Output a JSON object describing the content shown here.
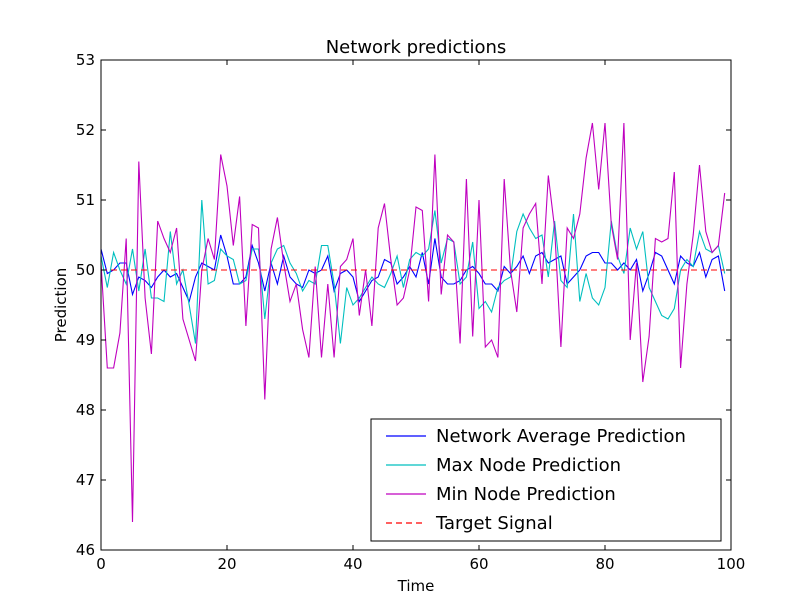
{
  "chart_data": {
    "type": "line",
    "title": "Network predictions",
    "xlabel": "Time",
    "ylabel": "Prediction",
    "xlim": [
      0,
      100
    ],
    "ylim": [
      46,
      53
    ],
    "xticks": [
      "0",
      "20",
      "40",
      "60",
      "80",
      "100"
    ],
    "yticks": [
      "46",
      "47",
      "48",
      "49",
      "50",
      "51",
      "52",
      "53"
    ],
    "grid": false,
    "legend_position": "lower-right",
    "x": [
      0,
      1,
      2,
      3,
      4,
      5,
      6,
      7,
      8,
      9,
      10,
      11,
      12,
      13,
      14,
      15,
      16,
      17,
      18,
      19,
      20,
      21,
      22,
      23,
      24,
      25,
      26,
      27,
      28,
      29,
      30,
      31,
      32,
      33,
      34,
      35,
      36,
      37,
      38,
      39,
      40,
      41,
      42,
      43,
      44,
      45,
      46,
      47,
      48,
      49,
      50,
      51,
      52,
      53,
      54,
      55,
      56,
      57,
      58,
      59,
      60,
      61,
      62,
      63,
      64,
      65,
      66,
      67,
      68,
      69,
      70,
      71,
      72,
      73,
      74,
      75,
      76,
      77,
      78,
      79,
      80,
      81,
      82,
      83,
      84,
      85,
      86,
      87,
      88,
      89,
      90,
      91,
      92,
      93,
      94,
      95,
      96,
      97,
      98,
      99
    ],
    "series": [
      {
        "name": "Network Average Prediction",
        "color": "#0000ff",
        "dash": "solid",
        "values": [
          50.3,
          49.95,
          50.0,
          50.1,
          50.1,
          49.65,
          49.9,
          49.85,
          49.75,
          49.9,
          50.0,
          49.9,
          49.95,
          49.75,
          49.55,
          49.9,
          50.1,
          50.05,
          50.0,
          50.5,
          50.2,
          49.8,
          49.8,
          49.9,
          50.35,
          50.1,
          49.7,
          50.1,
          49.8,
          50.2,
          49.9,
          49.8,
          49.75,
          50.0,
          49.95,
          50.0,
          50.2,
          49.7,
          49.95,
          50.0,
          49.9,
          49.55,
          49.7,
          49.85,
          49.9,
          50.15,
          50.1,
          49.8,
          49.9,
          50.05,
          49.9,
          50.25,
          49.8,
          50.45,
          49.9,
          49.8,
          49.8,
          49.85,
          50.0,
          50.05,
          49.95,
          49.8,
          49.8,
          49.7,
          50.05,
          49.95,
          50.05,
          50.2,
          49.95,
          50.2,
          50.25,
          50.1,
          50.15,
          50.2,
          49.8,
          49.9,
          50.0,
          50.2,
          50.25,
          50.25,
          50.1,
          50.1,
          50.0,
          50.1,
          50.0,
          50.15,
          49.7,
          49.95,
          50.25,
          50.2,
          50.0,
          49.8,
          50.2,
          50.1,
          50.05,
          50.25,
          49.9,
          50.15,
          50.2,
          49.7
        ]
      },
      {
        "name": "Max Node Prediction",
        "color": "#00bfbf",
        "dash": "solid",
        "values": [
          50.2,
          49.75,
          50.25,
          50.0,
          49.8,
          50.3,
          49.7,
          50.3,
          49.6,
          49.6,
          49.55,
          50.55,
          49.8,
          50.0,
          49.5,
          48.95,
          51.0,
          49.8,
          49.85,
          50.3,
          50.2,
          50.15,
          49.8,
          49.85,
          50.3,
          50.3,
          49.3,
          50.1,
          50.3,
          50.35,
          50.1,
          49.95,
          49.7,
          49.85,
          49.8,
          50.35,
          50.35,
          49.8,
          48.95,
          49.75,
          49.5,
          49.6,
          49.75,
          49.9,
          49.8,
          49.75,
          49.95,
          50.2,
          49.75,
          50.15,
          50.25,
          50.2,
          50.3,
          50.85,
          50.1,
          50.45,
          50.4,
          49.8,
          49.9,
          50.4,
          49.45,
          49.55,
          49.4,
          49.75,
          49.85,
          49.9,
          50.55,
          50.8,
          50.6,
          50.45,
          50.5,
          49.9,
          50.7,
          49.85,
          49.75,
          50.8,
          49.55,
          49.95,
          49.6,
          49.5,
          49.75,
          50.7,
          50.2,
          49.95,
          50.6,
          50.3,
          50.55,
          49.75,
          49.55,
          49.35,
          49.3,
          49.45,
          50.0,
          50.15,
          50.05,
          50.55,
          50.3,
          50.25,
          50.35,
          49.95
        ]
      },
      {
        "name": "Min Node Prediction",
        "color": "#bf00bf",
        "dash": "solid",
        "values": [
          50.1,
          48.6,
          48.6,
          49.1,
          50.45,
          46.4,
          51.55,
          49.6,
          48.8,
          50.7,
          50.45,
          50.25,
          50.6,
          49.3,
          49.0,
          48.7,
          50.0,
          50.45,
          50.15,
          51.65,
          51.2,
          50.35,
          51.05,
          49.2,
          50.65,
          50.6,
          48.15,
          50.3,
          50.75,
          50.1,
          49.55,
          49.8,
          49.15,
          48.75,
          50.05,
          48.75,
          49.8,
          48.75,
          50.05,
          50.15,
          50.45,
          49.35,
          50.0,
          49.2,
          50.6,
          50.95,
          50.15,
          49.5,
          49.6,
          50.0,
          50.9,
          50.85,
          49.55,
          51.65,
          49.65,
          50.5,
          50.4,
          48.95,
          51.3,
          49.05,
          51.0,
          48.9,
          49.0,
          48.75,
          51.3,
          50.0,
          49.4,
          50.6,
          50.8,
          50.95,
          49.8,
          51.35,
          50.6,
          48.9,
          50.6,
          50.45,
          50.8,
          51.6,
          52.1,
          51.15,
          52.1,
          50.65,
          50.15,
          52.1,
          49.0,
          50.1,
          48.4,
          49.05,
          50.45,
          50.4,
          50.45,
          51.4,
          48.6,
          49.8,
          50.5,
          51.5,
          50.55,
          50.25,
          50.35,
          51.1
        ]
      },
      {
        "name": "Target Signal",
        "color": "#ff0000",
        "dash": "dashed",
        "values": [
          50,
          50,
          50,
          50,
          50,
          50,
          50,
          50,
          50,
          50,
          50,
          50,
          50,
          50,
          50,
          50,
          50,
          50,
          50,
          50,
          50,
          50,
          50,
          50,
          50,
          50,
          50,
          50,
          50,
          50,
          50,
          50,
          50,
          50,
          50,
          50,
          50,
          50,
          50,
          50,
          50,
          50,
          50,
          50,
          50,
          50,
          50,
          50,
          50,
          50,
          50,
          50,
          50,
          50,
          50,
          50,
          50,
          50,
          50,
          50,
          50,
          50,
          50,
          50,
          50,
          50,
          50,
          50,
          50,
          50,
          50,
          50,
          50,
          50,
          50,
          50,
          50,
          50,
          50,
          50,
          50,
          50,
          50,
          50,
          50,
          50,
          50,
          50,
          50,
          50,
          50,
          50,
          50,
          50,
          50,
          50,
          50,
          50,
          50,
          50
        ]
      }
    ]
  }
}
